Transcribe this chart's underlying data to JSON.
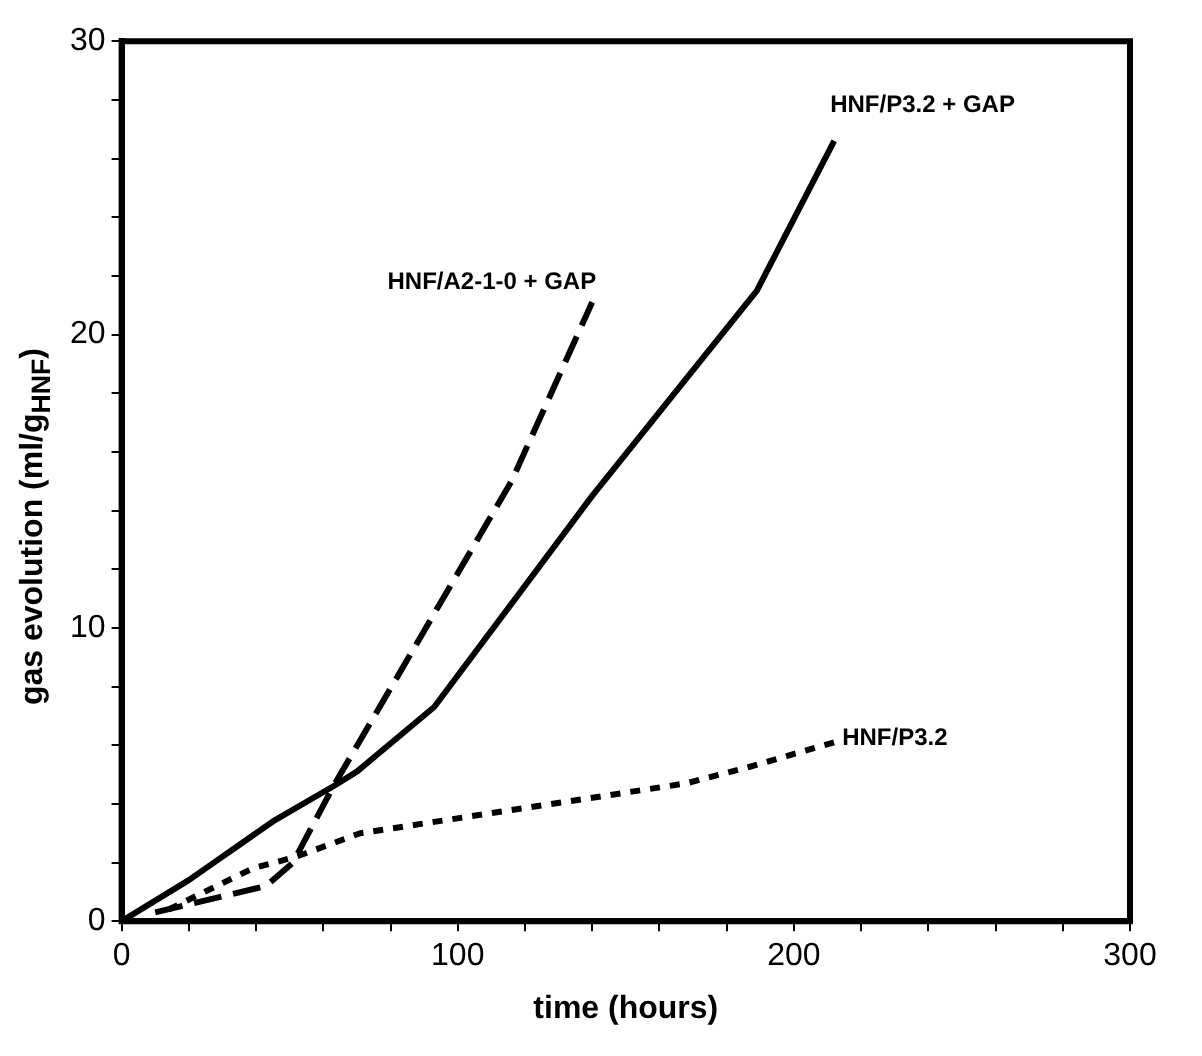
{
  "chart_data": {
    "type": "line",
    "xlabel": "time (hours)",
    "ylabel": "gas evolution (ml/g$_{HNF}$)",
    "xlim": [
      0,
      300
    ],
    "ylim": [
      0,
      30
    ],
    "xticks": [
      0,
      {
        "value": 20,
        "label": null
      },
      {
        "value": 40,
        "label": null
      },
      {
        "value": 60,
        "label": null
      },
      {
        "value": 80,
        "label": null
      },
      100,
      {
        "value": 120,
        "label": null
      },
      {
        "value": 140,
        "label": null
      },
      {
        "value": 160,
        "label": null
      },
      {
        "value": 180,
        "label": null
      },
      200,
      {
        "value": 220,
        "label": null
      },
      {
        "value": 240,
        "label": null
      },
      {
        "value": 260,
        "label": null
      },
      {
        "value": 280,
        "label": null
      },
      300
    ],
    "yticks": [
      0,
      {
        "value": 2,
        "label": null
      },
      {
        "value": 4,
        "label": null
      },
      {
        "value": 6,
        "label": null
      },
      {
        "value": 8,
        "label": null
      },
      10,
      {
        "value": 12,
        "label": null
      },
      {
        "value": 14,
        "label": null
      },
      {
        "value": 16,
        "label": null
      },
      {
        "value": 18,
        "label": null
      },
      20,
      {
        "value": 22,
        "label": null
      },
      {
        "value": 24,
        "label": null
      },
      {
        "value": 26,
        "label": null
      },
      {
        "value": 28,
        "label": null
      },
      30
    ],
    "grid": false,
    "legend": false,
    "marker": "none",
    "series": [
      {
        "name": "HNF/P3.2 + GAP",
        "color": "#000000",
        "line_style": "solid",
        "x": [
          0,
          20,
          45,
          63,
          70,
          93,
          140,
          189,
          212
        ],
        "values": [
          0,
          1.4,
          3.4,
          4.6,
          5.1,
          7.3,
          14.5,
          21.5,
          26.6
        ]
      },
      {
        "name": "HNF/A2-1-0 + GAP",
        "color": "#000000",
        "line_style": "dashed",
        "x": [
          10,
          43,
          51,
          63,
          116,
          140
        ],
        "values": [
          0.3,
          1.2,
          2.0,
          4.6,
          15,
          21.1
        ]
      },
      {
        "name": "HNF/P3.2",
        "color": "#000000",
        "line_style": "dotted",
        "x": [
          14,
          39,
          52,
          71,
          168,
          188,
          212
        ],
        "values": [
          0.4,
          1.8,
          2.2,
          3.0,
          4.7,
          5.3,
          6.1
        ]
      }
    ]
  }
}
